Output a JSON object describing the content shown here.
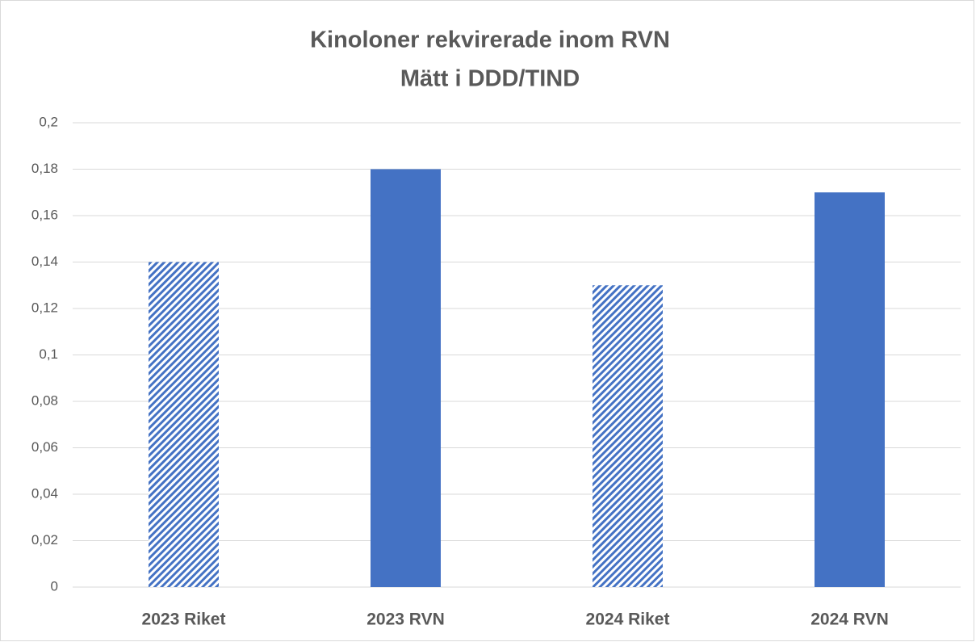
{
  "chart_data": {
    "type": "bar",
    "title": "Kinoloner rekvirerade inom RVN",
    "subtitle": "Mätt i DDD/TIND",
    "categories": [
      "2023 Riket",
      "2023 RVN",
      "2024 Riket",
      "2024 RVN"
    ],
    "values": [
      0.14,
      0.18,
      0.13,
      0.17
    ],
    "colors": [
      "#4472c4",
      "#4472c4",
      "#4472c4",
      "#4472c4"
    ],
    "patterns": [
      "hatch",
      "solid",
      "hatch",
      "solid"
    ],
    "ylim": [
      0,
      0.2
    ],
    "yticks": [
      0,
      {
        "value": 0.02,
        "label": "0,02"
      },
      {
        "value": 0.04,
        "label": "0,04"
      },
      {
        "value": 0.06,
        "label": "0,06"
      },
      {
        "value": 0.08,
        "label": "0,08"
      },
      {
        "value": 0.1,
        "label": "0,1"
      },
      {
        "value": 0.12,
        "label": "0,12"
      },
      {
        "value": 0.14,
        "label": "0,14"
      },
      {
        "value": 0.16,
        "label": "0,16"
      },
      {
        "value": 0.18,
        "label": "0,18"
      },
      {
        "value": 0.2,
        "label": "0,2"
      }
    ],
    "grid": true
  }
}
